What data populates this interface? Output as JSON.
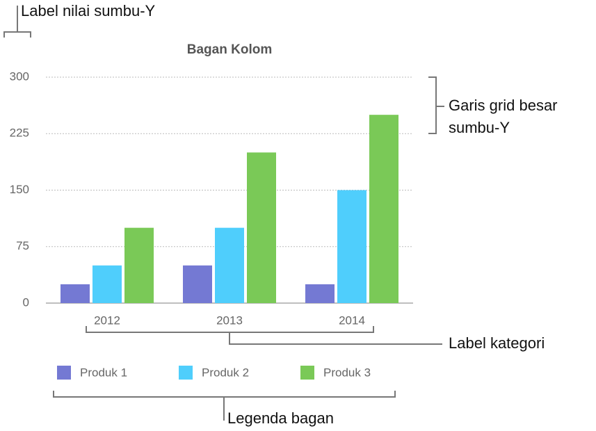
{
  "chart_data": {
    "type": "bar",
    "title": "Bagan Kolom",
    "categories": [
      "2012",
      "2013",
      "2014"
    ],
    "series": [
      {
        "name": "Produk 1",
        "color": "#7479d3",
        "values": [
          25,
          50,
          25
        ]
      },
      {
        "name": "Produk 2",
        "color": "#4fcefc",
        "values": [
          50,
          100,
          150
        ]
      },
      {
        "name": "Produk 3",
        "color": "#7ac957",
        "values": [
          100,
          200,
          250
        ]
      }
    ],
    "ylim": [
      0,
      300
    ],
    "yticks": [
      0,
      75,
      150,
      225,
      300
    ],
    "grid": true,
    "legend": "bottom",
    "annotations": [
      "Label nilai sumbu-Y",
      "Garis grid besar",
      "sumbu-Y",
      "Label kategori",
      "Legenda bagan"
    ]
  }
}
